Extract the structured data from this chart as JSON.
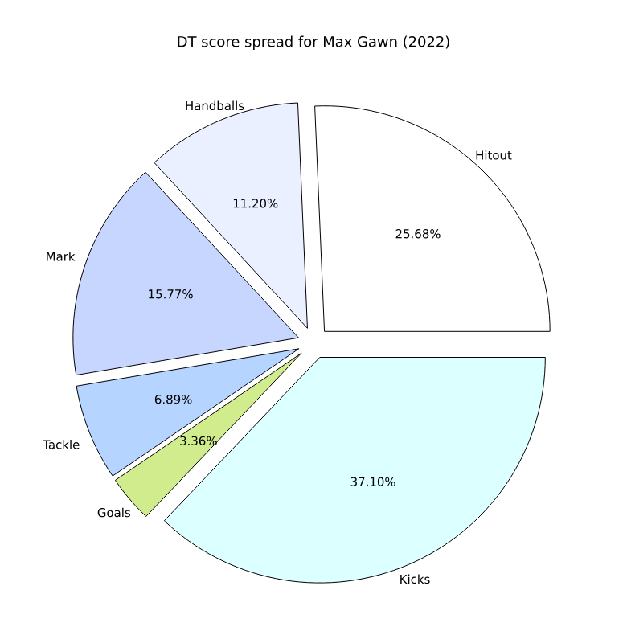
{
  "chart_data": {
    "type": "pie",
    "title": "DT score spread for Max Gawn (2022)",
    "categories": [
      "Hitout",
      "Handballs",
      "Mark",
      "Tackle",
      "Goals",
      "Kicks"
    ],
    "values": [
      25.68,
      11.2,
      15.77,
      6.89,
      3.36,
      37.1
    ],
    "value_labels": [
      "25.68%",
      "11.20%",
      "15.77%",
      "6.89%",
      "3.36%",
      "37.10%"
    ],
    "colors": [
      "#ffffff",
      "#eaf0ff",
      "#c6d6ff",
      "#b5d4ff",
      "#d0ec8c",
      "#dcffff"
    ]
  }
}
